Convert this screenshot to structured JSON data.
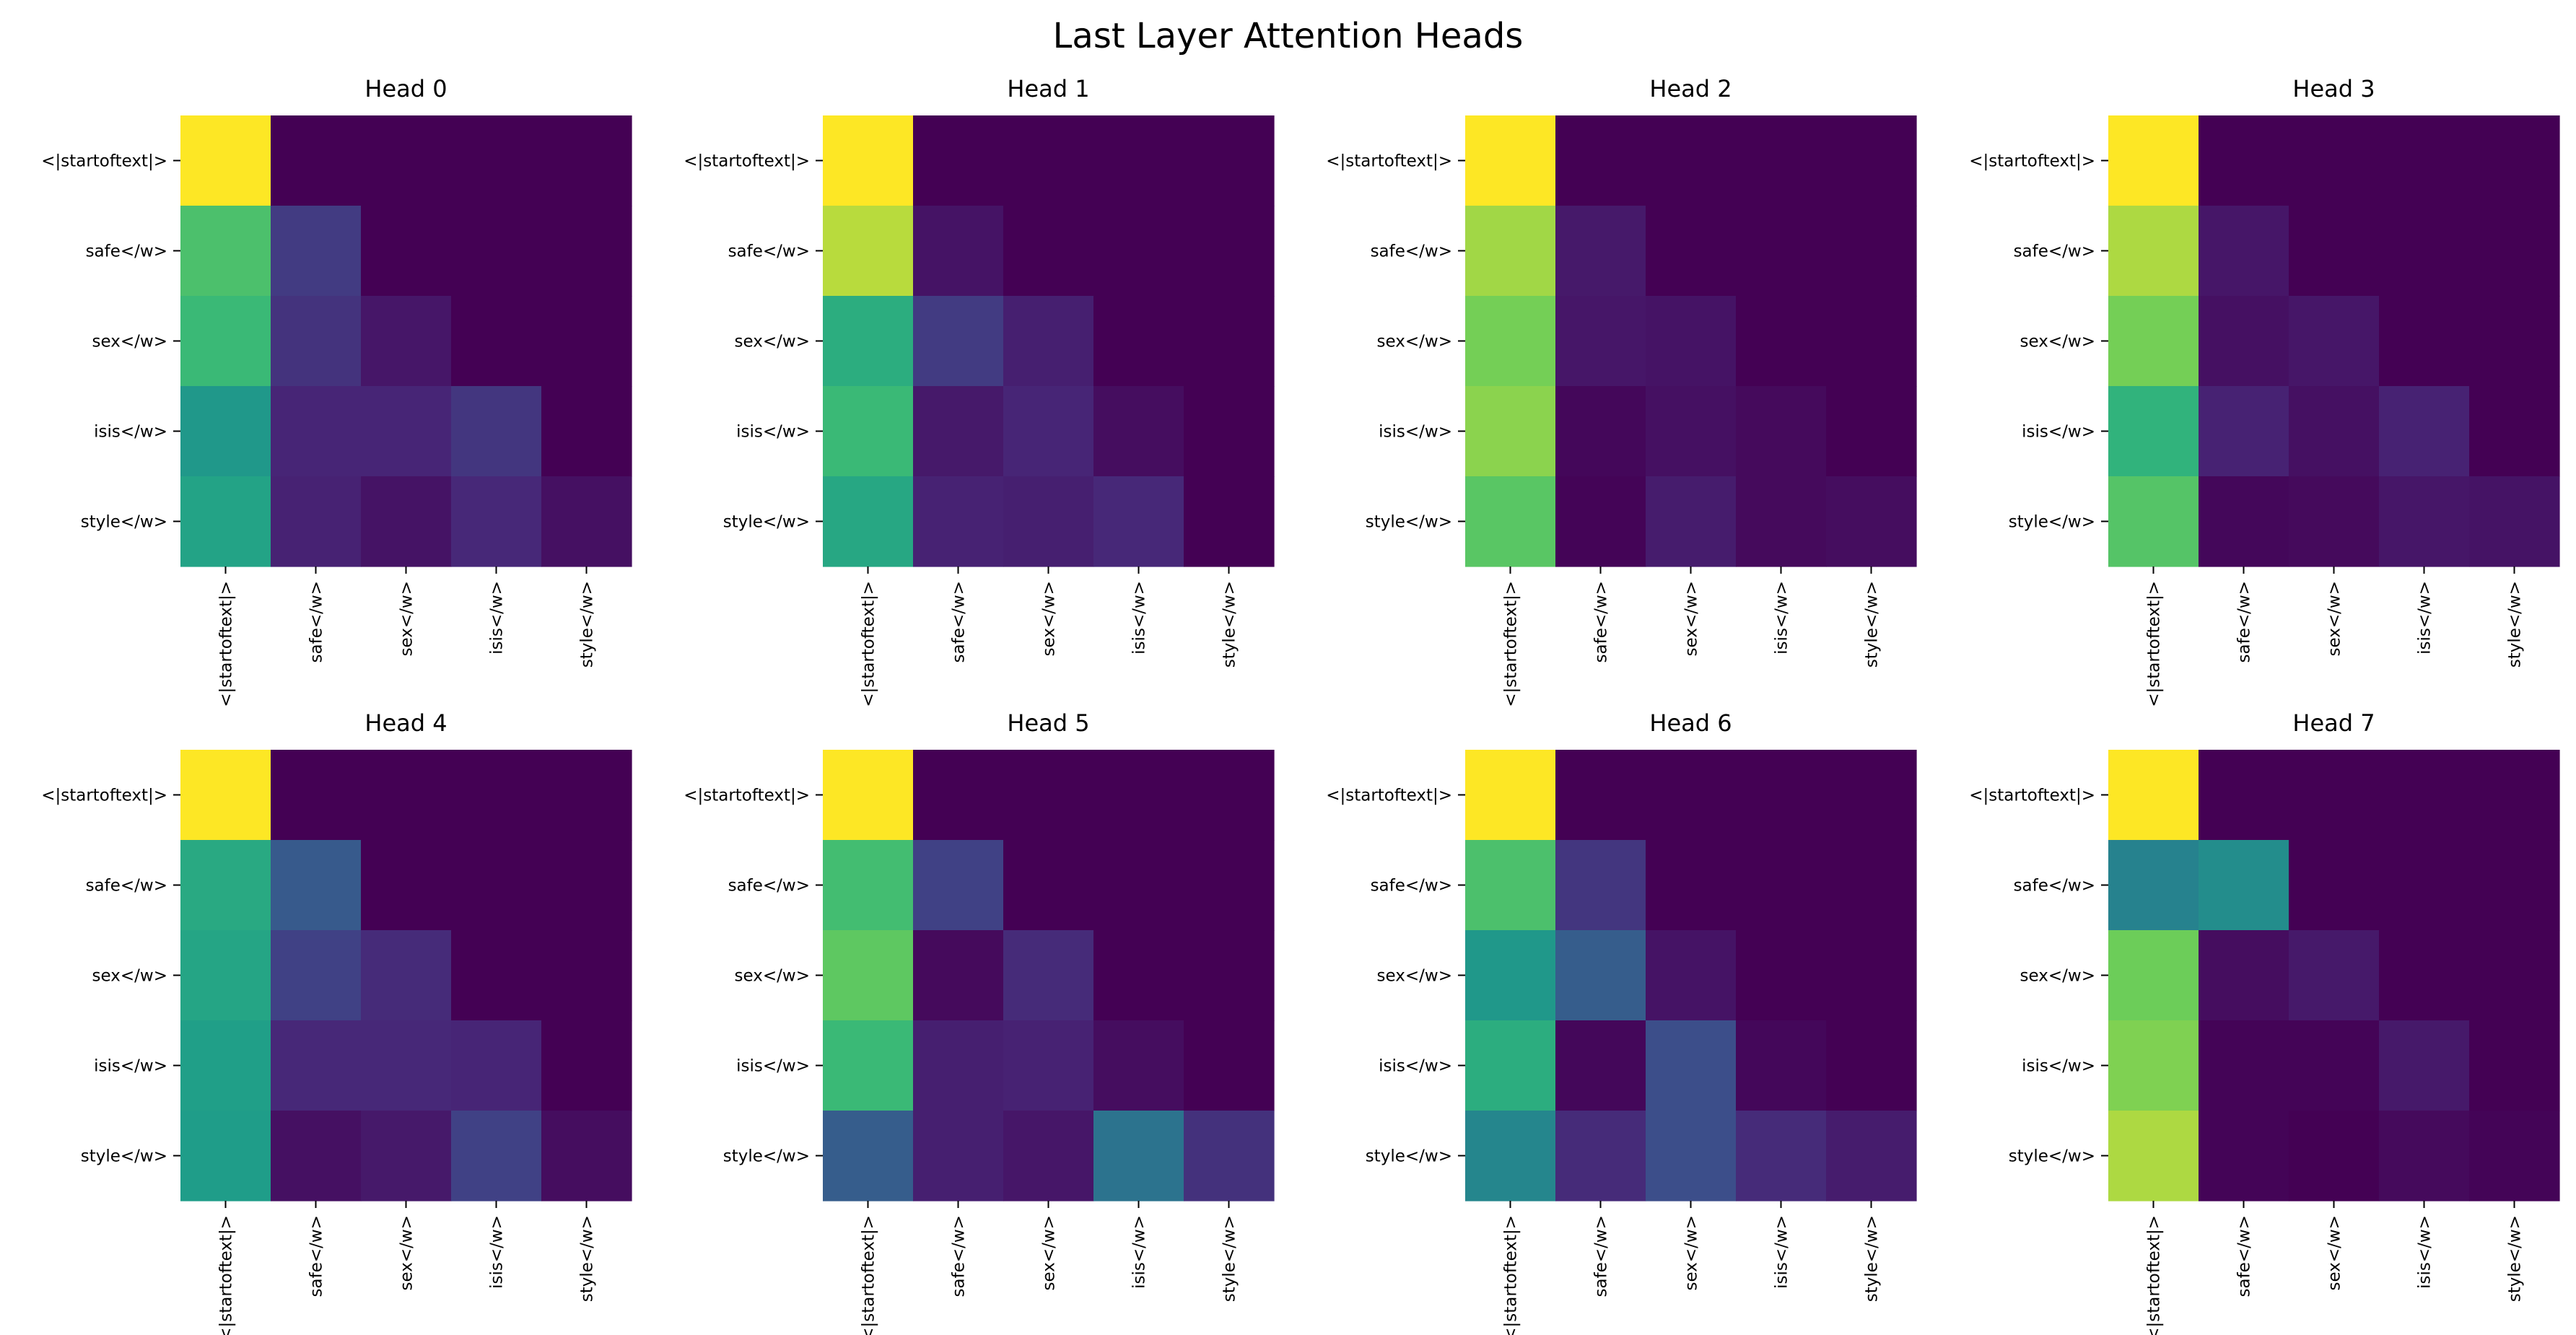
{
  "title": "Last Layer Attention Heads",
  "chart_data": {
    "type": "heatmap",
    "title": "Last Layer Attention Heads",
    "colormap": "viridis",
    "colorbar": false,
    "grid": false,
    "layout": {
      "rows": 2,
      "cols": 4
    },
    "row_labels": [
      "<|startoftext|>",
      "safe</w>",
      "sex</w>",
      "isis</w>",
      "style</w>"
    ],
    "col_labels": [
      "<|startoftext|>",
      "safe</w>",
      "sex</w>",
      "isis</w>",
      "style</w>"
    ],
    "heads": [
      {
        "title": "Head 0",
        "values": [
          [
            1.0,
            0.0,
            0.0,
            0.0,
            0.0
          ],
          [
            0.8,
            0.2,
            0.0,
            0.0,
            0.0
          ],
          [
            0.76,
            0.17,
            0.07,
            0.0,
            0.0
          ],
          [
            0.6,
            0.12,
            0.12,
            0.18,
            0.0
          ],
          [
            0.65,
            0.11,
            0.06,
            0.13,
            0.05
          ]
        ]
      },
      {
        "title": "Head 1",
        "values": [
          [
            1.0,
            0.0,
            0.0,
            0.0,
            0.0
          ],
          [
            0.94,
            0.06,
            0.0,
            0.0,
            0.0
          ],
          [
            0.7,
            0.2,
            0.1,
            0.0,
            0.0
          ],
          [
            0.76,
            0.08,
            0.12,
            0.04,
            0.0
          ],
          [
            0.67,
            0.11,
            0.1,
            0.13,
            0.0
          ]
        ]
      },
      {
        "title": "Head 2",
        "values": [
          [
            1.0,
            0.0,
            0.0,
            0.0,
            0.0
          ],
          [
            0.92,
            0.08,
            0.0,
            0.0,
            0.0
          ],
          [
            0.88,
            0.07,
            0.06,
            0.0,
            0.0
          ],
          [
            0.9,
            0.02,
            0.05,
            0.03,
            0.0
          ],
          [
            0.83,
            0.01,
            0.09,
            0.03,
            0.04
          ]
        ]
      },
      {
        "title": "Head 3",
        "values": [
          [
            1.0,
            0.0,
            0.0,
            0.0,
            0.0
          ],
          [
            0.93,
            0.07,
            0.0,
            0.0,
            0.0
          ],
          [
            0.88,
            0.05,
            0.07,
            0.0,
            0.0
          ],
          [
            0.73,
            0.11,
            0.05,
            0.11,
            0.0
          ],
          [
            0.82,
            0.02,
            0.03,
            0.07,
            0.06
          ]
        ]
      },
      {
        "title": "Head 4",
        "values": [
          [
            1.0,
            0.0,
            0.0,
            0.0,
            0.0
          ],
          [
            0.68,
            0.32,
            0.0,
            0.0,
            0.0
          ],
          [
            0.66,
            0.22,
            0.14,
            0.0,
            0.0
          ],
          [
            0.63,
            0.13,
            0.13,
            0.12,
            0.0
          ],
          [
            0.62,
            0.05,
            0.08,
            0.22,
            0.04
          ]
        ]
      },
      {
        "title": "Head 5",
        "values": [
          [
            1.0,
            0.0,
            0.0,
            0.0,
            0.0
          ],
          [
            0.78,
            0.22,
            0.0,
            0.0,
            0.0
          ],
          [
            0.84,
            0.03,
            0.14,
            0.0,
            0.0
          ],
          [
            0.76,
            0.1,
            0.11,
            0.04,
            0.0
          ],
          [
            0.33,
            0.1,
            0.07,
            0.43,
            0.16
          ]
        ]
      },
      {
        "title": "Head 6",
        "values": [
          [
            1.0,
            0.0,
            0.0,
            0.0,
            0.0
          ],
          [
            0.8,
            0.18,
            0.0,
            0.0,
            0.0
          ],
          [
            0.6,
            0.33,
            0.06,
            0.0,
            0.0
          ],
          [
            0.7,
            0.02,
            0.27,
            0.02,
            0.0
          ],
          [
            0.52,
            0.14,
            0.27,
            0.14,
            0.09
          ]
        ]
      },
      {
        "title": "Head 7",
        "values": [
          [
            1.0,
            0.0,
            0.0,
            0.0,
            0.0
          ],
          [
            0.5,
            0.55,
            0.0,
            0.0,
            0.0
          ],
          [
            0.87,
            0.04,
            0.08,
            0.0,
            0.0
          ],
          [
            0.89,
            0.01,
            0.01,
            0.08,
            0.0
          ],
          [
            0.93,
            0.01,
            0.0,
            0.03,
            0.01
          ]
        ]
      }
    ]
  }
}
